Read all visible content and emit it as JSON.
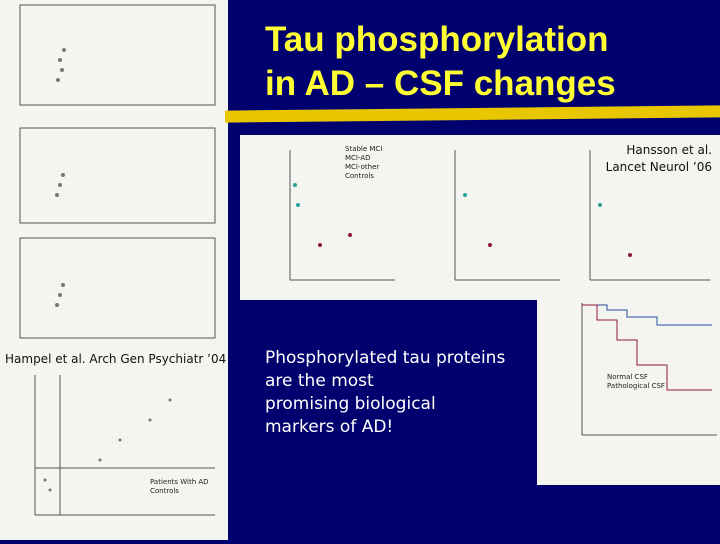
{
  "slide": {
    "title": [
      "Tau phosphorylation",
      "in AD – CSF changes"
    ],
    "citation_right": [
      "Hansson et al.",
      "Lancet Neurol ’06"
    ],
    "citation_left": "Hampel et al. Arch Gen Psychiatr ’04",
    "body": [
      "Phosphorylated tau proteins",
      "are the most",
      "promising biological",
      "markers of AD!"
    ],
    "figure_middle_legend": [
      "Stable MCI",
      "MCI-AD",
      "MCI-other",
      "Controls"
    ],
    "figure_bottom_legend": [
      "Patients With AD",
      "Controls"
    ],
    "figure_right_legend": [
      "Normal CSF",
      "Pathological CSF"
    ]
  }
}
